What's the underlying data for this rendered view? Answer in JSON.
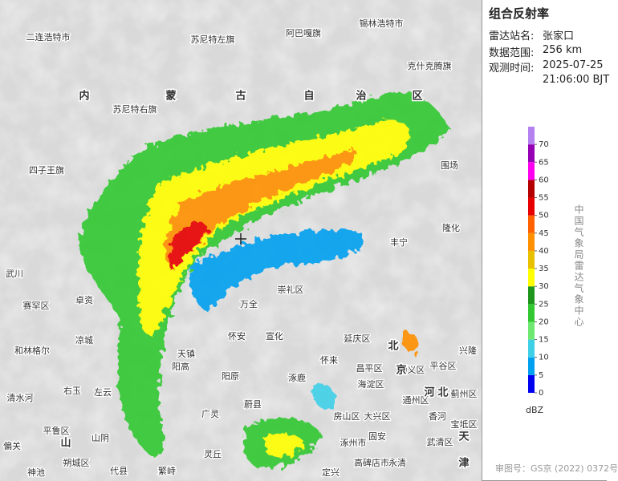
{
  "panel": {
    "title": "组合反射率",
    "rows": [
      {
        "label": "雷达站名:",
        "value": "张家口"
      },
      {
        "label": "数据范围:",
        "value": "256 km"
      },
      {
        "label": "观测时间:",
        "value": "2025-07-25",
        "value2": "21:06:00 BJT"
      }
    ],
    "legend": {
      "ticks": [
        0,
        5,
        10,
        15,
        20,
        25,
        30,
        35,
        40,
        45,
        50,
        55,
        60,
        65,
        70
      ],
      "colors": [
        "#0000f0",
        "#00a0f0",
        "#3fd0e8",
        "#6ee870",
        "#32c832",
        "#1e961e",
        "#ffff00",
        "#e8c000",
        "#ff9000",
        "#ff6000",
        "#e80000",
        "#b40000",
        "#ff00f0",
        "#9600b4",
        "#b482f0"
      ],
      "unit": "dBZ"
    },
    "credit": "中国气象局雷达气象中心",
    "footer": "审图号：GS京 (2022) 0372号"
  },
  "map": {
    "places": [
      "二连浩特市",
      "苏尼特左旗",
      "阿巴嘎旗",
      "锡林浩特市",
      "克什克腾旗",
      "苏尼特右旗",
      "四子王旗",
      "围场",
      "丰宁",
      "隆化",
      "武川",
      "赛罕区",
      "卓资",
      "凉城",
      "和林格尔",
      "清水河",
      "右玉",
      "左云",
      "平鲁区",
      "山阴",
      "朔城区",
      "偏关",
      "神池",
      "代县",
      "繁峙",
      "天镇",
      "阳高",
      "阳原",
      "广灵",
      "灵丘",
      "蔚县",
      "怀安",
      "宣化",
      "崇礼区",
      "万全",
      "涿鹿",
      "怀来",
      "延庆区",
      "昌平区",
      "顺义区",
      "平谷区",
      "兴隆",
      "海淀区",
      "通州区",
      "蓟州区",
      "香河",
      "宝坻区",
      "大兴区",
      "房山区",
      "固安",
      "涿州市",
      "高碑店市",
      "定兴",
      "永清",
      "武清区"
    ],
    "regions": [
      "内",
      "蒙",
      "古",
      "自",
      "治",
      "区",
      "北",
      "京",
      "河",
      "北",
      "天",
      "津",
      "山"
    ]
  }
}
